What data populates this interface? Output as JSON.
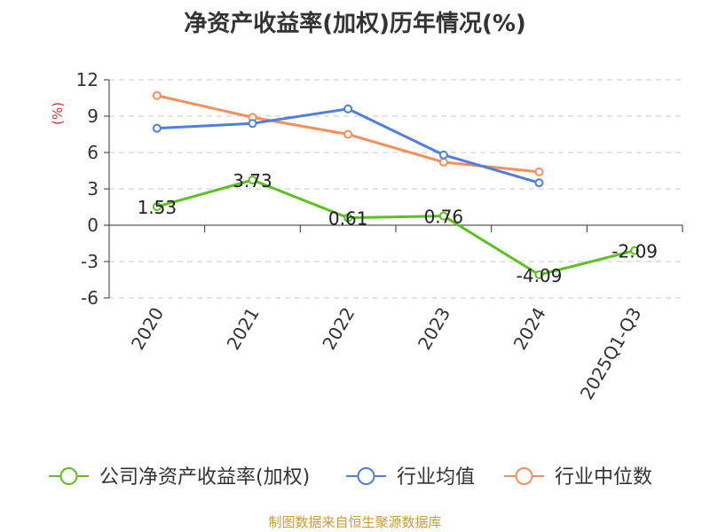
{
  "chart_data": {
    "type": "line",
    "title": "净资产收益率(加权)历年情况(%)",
    "ylabel": "(%)",
    "xlabel": "",
    "categories": [
      "2020",
      "2021",
      "2022",
      "2023",
      "2024",
      "2025Q1-Q3"
    ],
    "ylim": [
      -6,
      12
    ],
    "yticks": [
      12,
      9,
      6,
      3,
      0,
      -3,
      -6
    ],
    "ytick_labels": [
      "12",
      "9",
      "6",
      "3",
      "0",
      "-3",
      "-6"
    ],
    "grid": true,
    "legend_position": "bottom",
    "series": [
      {
        "name": "公司净资产收益率(加权)",
        "color": "#5cc11f",
        "values": [
          1.53,
          3.73,
          0.61,
          0.76,
          -4.09,
          -2.09
        ],
        "labels": [
          "1.53",
          "3.73",
          "0.61",
          "0.76",
          "-4.09",
          "-2.09"
        ]
      },
      {
        "name": "行业均值",
        "color": "#4f7fdc",
        "values": [
          8.0,
          8.4,
          9.6,
          5.8,
          3.5,
          null
        ]
      },
      {
        "name": "行业中位数",
        "color": "#f78f5c",
        "values": [
          10.7,
          8.9,
          7.5,
          5.2,
          4.4,
          null
        ]
      }
    ]
  },
  "source": "制图数据来自恒生聚源数据库"
}
